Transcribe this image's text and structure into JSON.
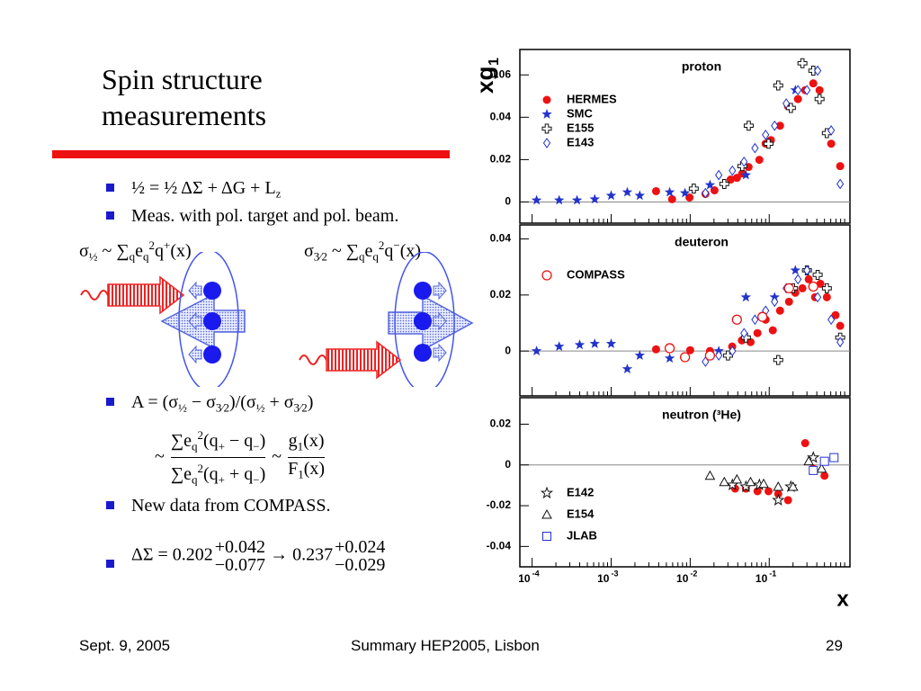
{
  "slide": {
    "title": "Spin structure measurements",
    "bullet1": [
      {
        "text": "½ = ½ ΔΣ + ΔG + L"
      },
      {
        "text": "z",
        "pos": "sub"
      }
    ],
    "bullet2": [
      {
        "text": "Meas. with pol. target and pol. beam."
      }
    ],
    "sigma_left": [
      {
        "text": "σ"
      },
      {
        "text": "½",
        "pos": "sub"
      },
      {
        "text": " ~ ∑"
      },
      {
        "text": "q",
        "pos": "sub"
      },
      {
        "text": "e"
      },
      {
        "text": "q",
        "pos": "sub"
      },
      {
        "text": "2",
        "pos": "sup"
      },
      {
        "text": "q"
      },
      {
        "text": "+",
        "pos": "sup"
      },
      {
        "text": "(x)"
      }
    ],
    "sigma_right": [
      {
        "text": "σ"
      },
      {
        "text": "3⁄2",
        "pos": "sub"
      },
      {
        "text": " ~ ∑"
      },
      {
        "text": "q",
        "pos": "sub"
      },
      {
        "text": "e"
      },
      {
        "text": "q",
        "pos": "sub"
      },
      {
        "text": "2",
        "pos": "sup"
      },
      {
        "text": "q"
      },
      {
        "text": "−",
        "pos": "sup"
      },
      {
        "text": "(x)"
      }
    ],
    "bullet3": [
      {
        "text": "A = (σ"
      },
      {
        "text": "½",
        "pos": "sub"
      },
      {
        "text": " − σ"
      },
      {
        "text": "3⁄2",
        "pos": "sub"
      },
      {
        "text": ")/(σ"
      },
      {
        "text": "½",
        "pos": "sub"
      },
      {
        "text": " + σ"
      },
      {
        "text": "3⁄2",
        "pos": "sub"
      },
      {
        "text": ")"
      }
    ],
    "ratio": [
      {
        "text": "~ "
      },
      {
        "num": [
          {
            "text": "∑e"
          },
          {
            "text": "q",
            "pos": "sub"
          },
          {
            "text": "2",
            "pos": "sup"
          },
          {
            "text": "(q"
          },
          {
            "text": "+",
            "pos": "sub"
          },
          {
            "text": " − q"
          },
          {
            "text": "−",
            "pos": "sub"
          },
          {
            "text": ")"
          }
        ],
        "den": [
          {
            "text": "∑e"
          },
          {
            "text": "q",
            "pos": "sub"
          },
          {
            "text": "2",
            "pos": "sup"
          },
          {
            "text": "(q"
          },
          {
            "text": "+",
            "pos": "sub"
          },
          {
            "text": " + q"
          },
          {
            "text": "−",
            "pos": "sub"
          },
          {
            "text": ")"
          }
        ]
      },
      {
        "text": " ~ "
      },
      {
        "num": [
          {
            "text": "g"
          },
          {
            "text": "1",
            "pos": "sub"
          },
          {
            "text": "(x)"
          }
        ],
        "den": [
          {
            "text": "F"
          },
          {
            "text": "1",
            "pos": "sub"
          },
          {
            "text": "(x)"
          }
        ]
      }
    ],
    "bullet4": [
      {
        "text": "New data from COMPASS."
      }
    ],
    "bullet5": [
      {
        "text": "ΔΣ = 0.202"
      },
      {
        "top": "+0.042",
        "bottom": "−0.077"
      },
      {
        "text": " → 0.237"
      },
      {
        "top": "+0.024",
        "bottom": "−0.029"
      }
    ]
  },
  "footer": {
    "date": "Sept. 9, 2005",
    "event": "Summary HEP2005, Lisbon",
    "page": "29"
  },
  "chart_data": [
    {
      "type": "scatter",
      "title": "proton",
      "y_label": "xg",
      "y_label_sub": "1",
      "log_x": true,
      "legend": "upper left",
      "xlim": [
        7e-05,
        1.05
      ],
      "ylim": [
        -0.01,
        0.072
      ],
      "yticks": [
        0,
        0.02,
        0.04,
        0.06
      ],
      "series": [
        {
          "name": "HERMES",
          "marker": "circle-filled",
          "color": "#ee1111",
          "x": [
            0.0037,
            0.0059,
            0.0098,
            0.0156,
            0.0203,
            0.0325,
            0.039,
            0.0456,
            0.0548,
            0.075,
            0.09,
            0.105,
            0.137,
            0.173,
            0.231,
            0.285,
            0.361,
            0.433,
            0.608,
            0.79
          ],
          "values": [
            0.0051,
            0.0013,
            0.0021,
            0.0038,
            0.0055,
            0.0106,
            0.0114,
            0.0135,
            0.0165,
            0.0199,
            0.0275,
            0.0292,
            0.036,
            0.0452,
            0.0486,
            0.0528,
            0.056,
            0.0528,
            0.0275,
            0.0169
          ]
        },
        {
          "name": "SMC",
          "marker": "star",
          "color": "#2233cc",
          "x": [
            0.000114,
            0.00022,
            0.00037,
            0.00062,
            0.001,
            0.0016,
            0.0023,
            0.0055,
            0.0086,
            0.0178,
            0.0507,
            0.214
          ],
          "values": [
            0.0008,
            0.0008,
            0.0008,
            0.0013,
            0.003,
            0.0046,
            0.003,
            0.0046,
            0.0042,
            0.008,
            0.0127,
            0.0528
          ]
        },
        {
          "name": "E155",
          "marker": "cross-open",
          "color": "#111111",
          "x": [
            0.0111,
            0.027,
            0.0456,
            0.055,
            0.098,
            0.13,
            0.188,
            0.263,
            0.361,
            0.433,
            0.536
          ],
          "values": [
            0.0063,
            0.0085,
            0.0169,
            0.036,
            0.0275,
            0.055,
            0.0444,
            0.0655,
            0.062,
            0.0486,
            0.0325
          ]
        },
        {
          "name": "E143",
          "marker": "diamond-open",
          "color": "#2233cc",
          "x": [
            0.0156,
            0.023,
            0.0342,
            0.048,
            0.066,
            0.09,
            0.117,
            0.164,
            0.231,
            0.3,
            0.41,
            0.608,
            0.79
          ],
          "values": [
            0.0042,
            0.0127,
            0.0148,
            0.019,
            0.0254,
            0.0317,
            0.036,
            0.0465,
            0.0528,
            0.0528,
            0.062,
            0.0338,
            0.0085
          ]
        }
      ]
    },
    {
      "type": "scatter",
      "title": "deuteron",
      "log_x": true,
      "legend": "upper left",
      "xlim": [
        7e-05,
        1.05
      ],
      "ylim": [
        -0.016,
        0.045
      ],
      "yticks": [
        0,
        0.02,
        0.04
      ],
      "series": [
        {
          "marker": "circle-filled",
          "color": "#ee1111",
          "x": [
            0.0037,
            0.0055,
            0.01,
            0.0178,
            0.034,
            0.045,
            0.058,
            0.071,
            0.09,
            0.111,
            0.137,
            0.178,
            0.214,
            0.263,
            0.316,
            0.38,
            0.444,
            0.536,
            0.69,
            0.79
          ],
          "values": [
            0.0006,
            0.001,
            0.0003,
            0,
            0.0016,
            0.0038,
            0.0032,
            0.0064,
            0.0112,
            0.0074,
            0.0144,
            0.0176,
            0.0208,
            0.0224,
            0.0256,
            0.0192,
            0.024,
            0.0192,
            0.0128,
            0.009
          ]
        },
        {
          "marker": "star",
          "color": "#2233cc",
          "x": [
            0.000114,
            0.00022,
            0.0004,
            0.00062,
            0.001,
            0.0016,
            0.0023,
            0.0055,
            0.023,
            0.0507,
            0.117,
            0.214
          ],
          "values": [
            0,
            0.0016,
            0.0022,
            0.0026,
            0.0026,
            -0.0064,
            -0.0016,
            -0.0026,
            0,
            0.0192,
            0.0192,
            0.0288
          ]
        },
        {
          "marker": "cross-open",
          "color": "#111111",
          "x": [
            0.0301,
            0.0507,
            0.13,
            0.2,
            0.3,
            0.41,
            0.536,
            0.79
          ],
          "values": [
            -0.0016,
            0.0048,
            -0.0032,
            0.0224,
            0.0288,
            0.0272,
            0.0224,
            0.0048
          ]
        },
        {
          "marker": "diamond-open",
          "color": "#2233cc",
          "x": [
            0.0156,
            0.023,
            0.0342,
            0.048,
            0.066,
            0.09,
            0.117,
            0.164,
            0.231,
            0.3,
            0.41,
            0.608,
            0.79
          ],
          "values": [
            -0.0038,
            -0.0016,
            0,
            0.0064,
            0.0112,
            0.0144,
            0.0176,
            0.0224,
            0.0256,
            0.0288,
            0.0192,
            0.0112,
            0.0032
          ]
        },
        {
          "name": "COMPASS",
          "marker": "circle-open",
          "color": "#ee1111",
          "x": [
            0.0055,
            0.0086,
            0.0178,
            0.039,
            0.082,
            0.178,
            0.361
          ],
          "values": [
            0.001,
            -0.0022,
            -0.0016,
            0.0112,
            0.0122,
            0.0224,
            0.023
          ]
        }
      ]
    },
    {
      "type": "scatter",
      "title": "neutron (³He)",
      "x_label": "x",
      "log_x": true,
      "legend": "lower left",
      "xlim": [
        7e-05,
        1.05
      ],
      "ylim": [
        -0.05,
        0.033
      ],
      "yticks": [
        -0.04,
        -0.02,
        0,
        0.02
      ],
      "xticks": [
        {
          "value": 0.0001,
          "label": "10",
          "exp": "-4"
        },
        {
          "value": 0.001,
          "label": "10",
          "exp": "-3"
        },
        {
          "value": 0.01,
          "label": "10",
          "exp": "-2"
        },
        {
          "value": 0.1,
          "label": "10",
          "exp": "-1"
        }
      ],
      "series": [
        {
          "marker": "circle-filled",
          "color": "#ee1111",
          "x": [
            0.037,
            0.0507,
            0.071,
            0.098,
            0.13,
            0.173,
            0.285,
            0.361,
            0.5
          ],
          "values": [
            -0.0116,
            -0.0116,
            -0.0129,
            -0.0129,
            -0.0142,
            -0.0173,
            0.0107,
            -0.0018,
            -0.0053
          ]
        },
        {
          "name": "E142",
          "marker": "star-open",
          "color": "#111111",
          "x": [
            0.0342,
            0.0507,
            0.075,
            0.13,
            0.188,
            0.361
          ],
          "values": [
            -0.0098,
            -0.0107,
            -0.0098,
            -0.0173,
            -0.0107,
            0.0036
          ]
        },
        {
          "name": "E154",
          "marker": "triangle-open",
          "color": "#111111",
          "x": [
            0.0178,
            0.027,
            0.039,
            0.058,
            0.085,
            0.13,
            0.2,
            0.316,
            0.46
          ],
          "values": [
            -0.0053,
            -0.0084,
            -0.0071,
            -0.0084,
            -0.0093,
            -0.0107,
            -0.0107,
            0.0018,
            -0.0018
          ]
        },
        {
          "name": "JLAB",
          "marker": "square-open",
          "color": "#2233cc",
          "x": [
            0.361,
            0.5,
            0.66
          ],
          "values": [
            -0.0027,
            0.0018,
            0.0036
          ]
        }
      ]
    }
  ]
}
